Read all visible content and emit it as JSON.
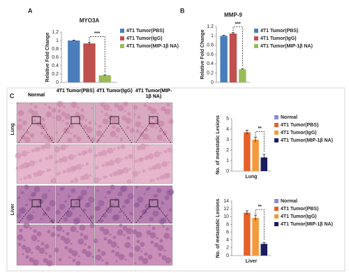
{
  "panels": [
    "A",
    "B",
    "C"
  ],
  "histology": {
    "columns": [
      "Normal",
      "4T1 Tumor(PBS)",
      "4T1 Tumor(IgG)",
      "4T1 Tumor(MIP-1β NA)"
    ],
    "rows": [
      "Lung",
      "Liver"
    ]
  },
  "chart_data": [
    {
      "type": "bar",
      "title": "MYO3A",
      "y_label": "Relative Fold Change",
      "categories": [
        null
      ],
      "series": [
        {
          "name": "4T1 Tumor(PBS)",
          "color": "#4a7ebb",
          "values": [
            1.0
          ],
          "errors": [
            0.01
          ]
        },
        {
          "name": "4T1 Tumor(IgG)",
          "color": "#c0504d",
          "values": [
            0.93
          ],
          "errors": [
            0.03
          ]
        },
        {
          "name": "4T1 Tumor(MIP-1β NA)",
          "color": "#9bbb59",
          "values": [
            0.17
          ],
          "errors": [
            0.01
          ]
        }
      ],
      "ylim": [
        0,
        1.2
      ],
      "yticks": [
        0,
        0.2,
        0.4,
        0.6,
        0.8,
        1,
        1.2
      ],
      "significance": "***"
    },
    {
      "type": "bar",
      "title": "MMP-9",
      "y_label": "Relative Fold Change",
      "categories": [
        null
      ],
      "series": [
        {
          "name": "4T1 Tumor(PBS)",
          "color": "#4a7ebb",
          "values": [
            1.0
          ],
          "errors": [
            0.01
          ]
        },
        {
          "name": "4T1 Tumor(IgG)",
          "color": "#c0504d",
          "values": [
            1.05
          ],
          "errors": [
            0.02
          ]
        },
        {
          "name": "4T1 Tumor(MIP-1β NA)",
          "color": "#9bbb59",
          "values": [
            0.28
          ],
          "errors": [
            0.01
          ]
        }
      ],
      "ylim": [
        0,
        1.2
      ],
      "yticks": [
        0,
        0.2,
        0.4,
        0.6,
        0.8,
        1,
        1.2
      ],
      "significance": "***"
    },
    {
      "type": "bar",
      "y_label": "No. of metastatic Lesions",
      "x_label": "Lung",
      "categories": [
        null
      ],
      "series": [
        {
          "name": "Normal",
          "color": "#8c8cd8",
          "values": [
            0
          ],
          "errors": [
            0
          ]
        },
        {
          "name": "4T1 Tumor(PBS)",
          "color": "#e4612a",
          "values": [
            3.7
          ],
          "errors": [
            0.2
          ]
        },
        {
          "name": "4T1 Tumor(IgG)",
          "color": "#f39a3d",
          "values": [
            3.0
          ],
          "errors": [
            0.25
          ]
        },
        {
          "name": "4T1 Tumor(MIP-1β NA)",
          "color": "#1c1c5e",
          "values": [
            1.3
          ],
          "errors": [
            0.3
          ]
        }
      ],
      "ylim": [
        0,
        5
      ],
      "yticks": [
        0,
        1,
        2,
        3,
        4,
        5
      ],
      "significance": "**"
    },
    {
      "type": "bar",
      "y_label": "No. of metastatic Lesions",
      "x_label": "Liver",
      "categories": [
        null
      ],
      "series": [
        {
          "name": "Normal",
          "color": "#8c8cd8",
          "values": [
            0
          ],
          "errors": [
            0
          ]
        },
        {
          "name": "4T1 Tumor(PBS)",
          "color": "#e4612a",
          "values": [
            11
          ],
          "errors": [
            0.5
          ]
        },
        {
          "name": "4T1 Tumor(IgG)",
          "color": "#f39a3d",
          "values": [
            9.7
          ],
          "errors": [
            0.7
          ]
        },
        {
          "name": "4T1 Tumor(MIP-1β NA)",
          "color": "#1c1c5e",
          "values": [
            3.0
          ],
          "errors": [
            0.4
          ]
        }
      ],
      "ylim": [
        0,
        14
      ],
      "yticks": [
        0,
        2,
        4,
        6,
        8,
        10,
        12,
        14
      ],
      "significance": "**"
    }
  ]
}
